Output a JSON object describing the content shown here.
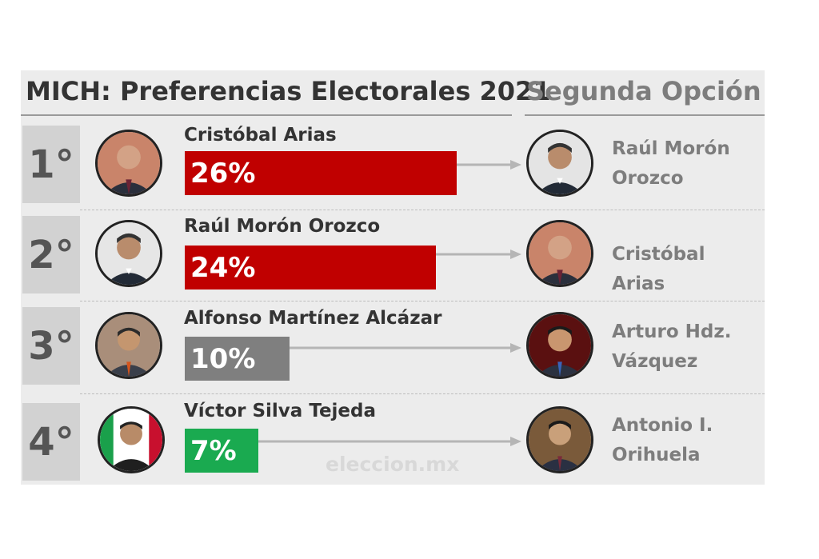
{
  "header": {
    "title": "MICH: Preferencias Electorales 2021",
    "second_option_title": "Segunda Opción"
  },
  "watermark": "eleccion.mx",
  "colors": {
    "cristobal": "#c00000",
    "raul": "#c00000",
    "alfonso": "#7f7f7f",
    "victor": "#1aaa50"
  },
  "chart_data": {
    "type": "bar",
    "title": "MICH: Preferencias Electorales 2021",
    "orientation": "horizontal",
    "categories": [
      "Cristóbal Arias",
      "Raúl Morón Orozco",
      "Alfonso Martínez Alcázar",
      "Víctor Silva Tejeda"
    ],
    "values": [
      26,
      24,
      10,
      7
    ],
    "value_labels": [
      "26%",
      "24%",
      "10%",
      "7%"
    ],
    "ranks": [
      "1°",
      "2°",
      "3°",
      "4°"
    ],
    "second_option_line1": [
      "Raúl Morón",
      "Cristóbal Arias",
      "Arturo Hdz.",
      "Antonio I."
    ],
    "second_option_line2": [
      "Orozco",
      "",
      "Vázquez",
      "Orihuela"
    ],
    "bar_colors": [
      "#c00000",
      "#c00000",
      "#7f7f7f",
      "#1aaa50"
    ],
    "xlim": [
      0,
      26
    ]
  }
}
